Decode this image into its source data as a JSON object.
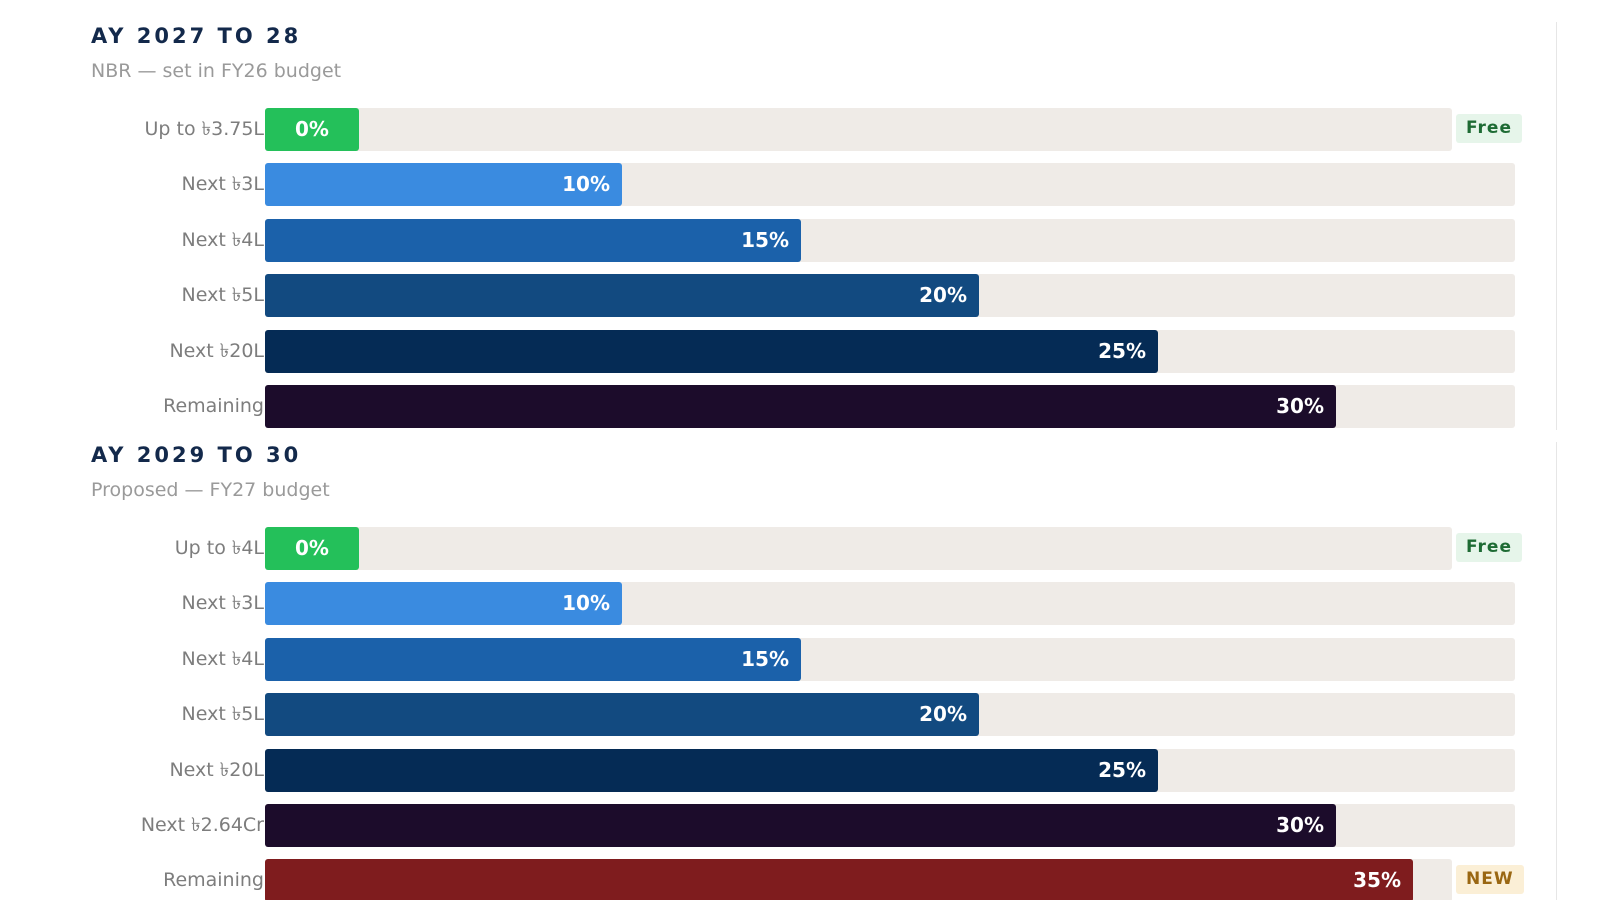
{
  "chart_data": [
    {
      "type": "bar",
      "orientation": "horizontal",
      "title": "AY 2027 TO 28",
      "subtitle": "NBR — set in FY26 budget",
      "xlim": [
        0,
        35
      ],
      "categories": [
        "Up to ৳3.75L",
        "Next ৳3L",
        "Next ৳4L",
        "Next ৳5L",
        "Next ৳20L",
        "Remaining"
      ],
      "values": [
        0,
        10,
        15,
        20,
        25,
        30
      ],
      "value_labels": [
        "0%",
        "10%",
        "15%",
        "20%",
        "25%",
        "30%"
      ],
      "colors": [
        "#24c05a",
        "#3a8be0",
        "#1b61aa",
        "#124a80",
        "#052b55",
        "#1c0c2b"
      ],
      "badges": [
        {
          "row": 0,
          "text": "Free",
          "kind": "free"
        }
      ]
    },
    {
      "type": "bar",
      "orientation": "horizontal",
      "title": "AY 2029 TO 30",
      "subtitle": "Proposed — FY27 budget",
      "xlim": [
        0,
        35
      ],
      "categories": [
        "Up to ৳4L",
        "Next ৳3L",
        "Next ৳4L",
        "Next ৳5L",
        "Next ৳20L",
        "Next ৳2.64Cr",
        "Remaining"
      ],
      "values": [
        0,
        10,
        15,
        20,
        25,
        30,
        35
      ],
      "value_labels": [
        "0%",
        "10%",
        "15%",
        "20%",
        "25%",
        "30%",
        "35%"
      ],
      "colors": [
        "#24c05a",
        "#3a8be0",
        "#1b61aa",
        "#124a80",
        "#052b55",
        "#1c0c2b",
        "#7f1c1e"
      ],
      "badges": [
        {
          "row": 0,
          "text": "Free",
          "kind": "free"
        },
        {
          "row": 6,
          "text": "NEW",
          "kind": "new"
        }
      ]
    }
  ]
}
